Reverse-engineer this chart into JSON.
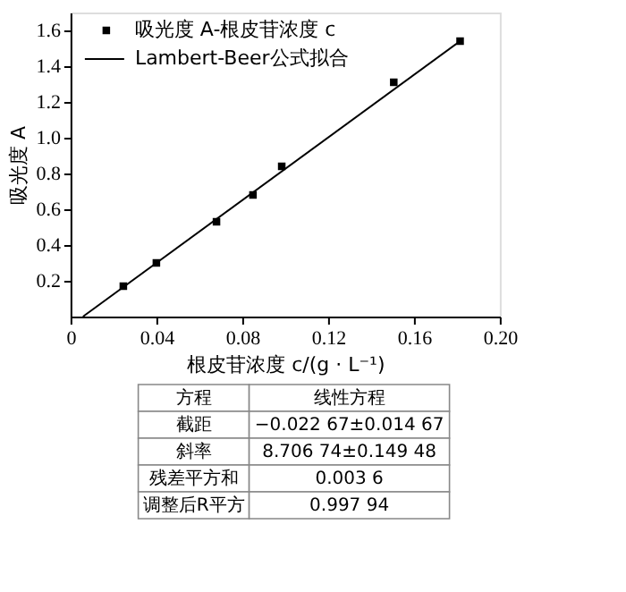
{
  "chart_data": {
    "type": "scatter",
    "xlabel": "根皮苷浓度 c/(g · L⁻¹)",
    "ylabel": "吸光度 A",
    "series": [
      {
        "name": "吸光度 A-根皮苷浓度 c",
        "color": "#000000",
        "marker": "square",
        "x": [
          0.0246,
          0.04,
          0.068,
          0.085,
          0.0984,
          0.1506,
          0.1815
        ],
        "values": [
          0.17,
          0.3,
          0.53,
          0.68,
          0.84,
          1.31,
          1.54
        ]
      },
      {
        "name": "Lambert-Beer公式拟合",
        "type": "line",
        "color": "#000000",
        "marker": "none",
        "line_style": "solid",
        "x": [
          0.0058,
          0.1815
        ],
        "values": [
          0,
          1.54
        ]
      }
    ],
    "xlim": [
      0,
      0.2
    ],
    "xticks": [
      0,
      0.04,
      0.08,
      0.12,
      0.16,
      {
        "value": 0.2,
        "label": "0.20"
      }
    ],
    "ylim": [
      0,
      1.7
    ],
    "yticks": [
      0.2,
      0.4,
      0.6,
      0.8,
      {
        "value": 1.0,
        "label": "1.0"
      },
      1.2,
      1.4,
      1.6
    ],
    "grid": false,
    "legend": "top left",
    "annotations": [
      "方程",
      "线性方程",
      "截距",
      "−0.022 67±0.014 67",
      "斜率",
      "8.706 74±0.149 48",
      "残差平方和",
      "0.003 6",
      "调整后R平方",
      "0.997 94"
    ]
  }
}
